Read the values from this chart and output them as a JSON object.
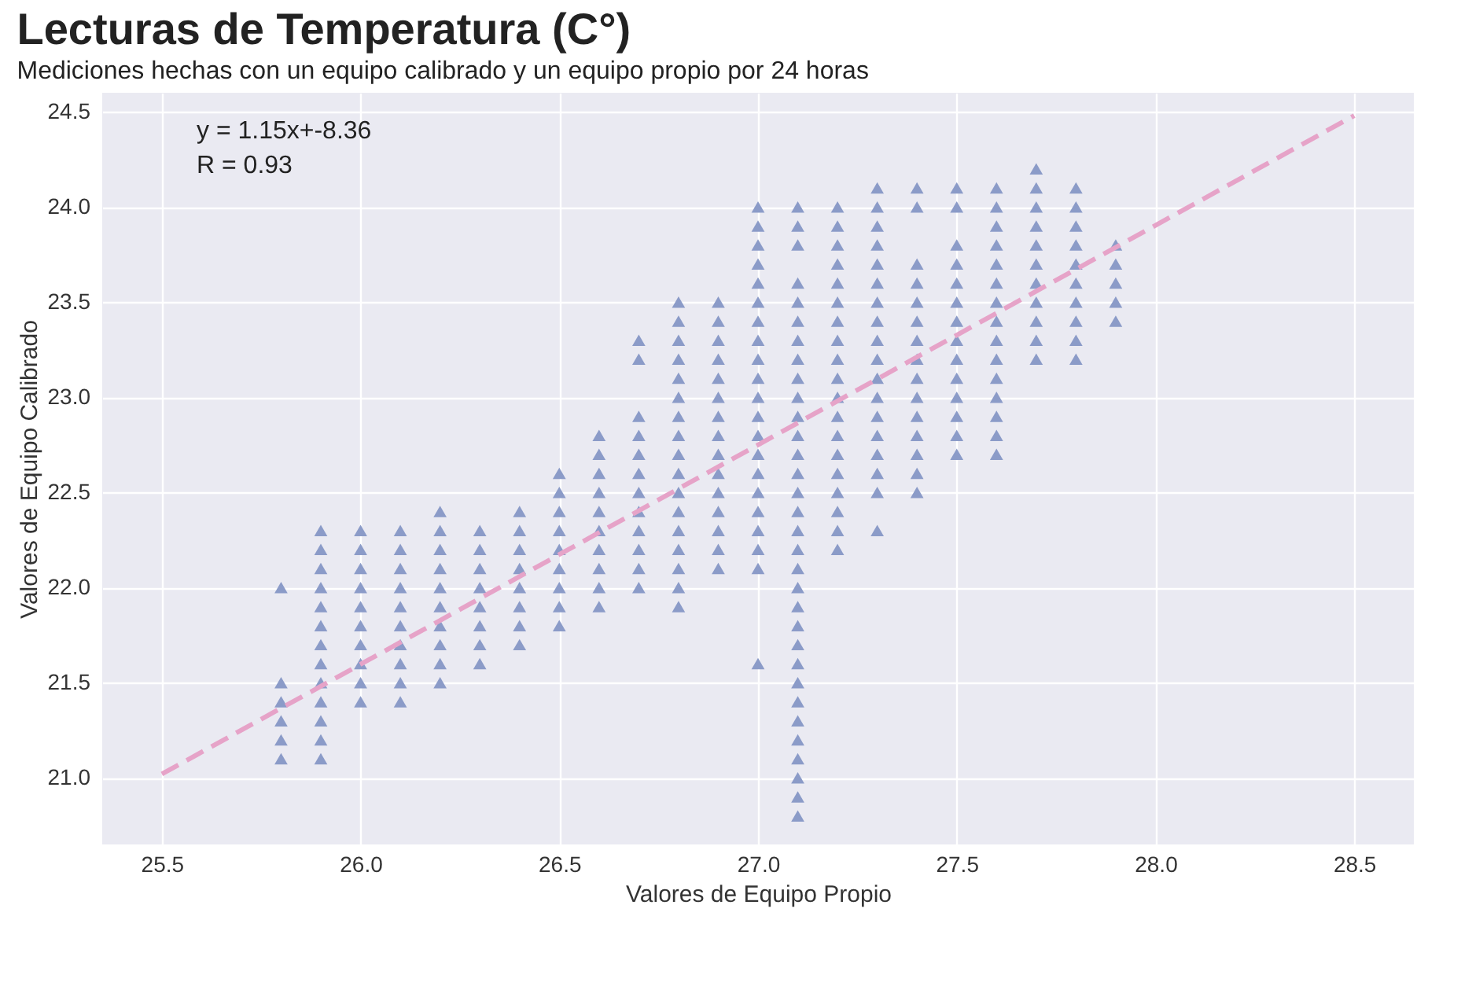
{
  "chart_data": {
    "type": "scatter",
    "title": "Lecturas de Temperatura (C°)",
    "subtitle": "Mediciones hechas con un equipo calibrado y un equipo propio por 24 horas",
    "xlabel": "Valores de Equipo Propio",
    "ylabel": "Valores de Equipo Calibrado",
    "annotations": [
      "y = 1.15x+-8.36",
      "R = 0.93"
    ],
    "xlim": [
      25.35,
      28.65
    ],
    "ylim": [
      20.65,
      24.6
    ],
    "xticks": [
      25.5,
      {
        "value": 26,
        "label": "26.0"
      },
      26.5,
      {
        "value": 27,
        "label": "27.0"
      },
      27.5,
      {
        "value": 28,
        "label": "28.0"
      },
      28.5
    ],
    "yticks": [
      {
        "value": 21,
        "label": "21.0"
      },
      21.5,
      {
        "value": 22,
        "label": "22.0"
      },
      22.5,
      {
        "value": 23,
        "label": "23.0"
      },
      23.5,
      {
        "value": 24,
        "label": "24.0"
      },
      24.5
    ],
    "grid": true,
    "marker": "triangle",
    "series": [
      {
        "color": "#8b9bc8",
        "x": [
          25.8,
          25.8,
          25.8,
          25.8,
          25.8,
          25.8,
          25.9,
          25.9,
          25.9,
          25.9,
          25.9,
          25.9,
          25.9,
          25.9,
          25.9,
          25.9,
          25.9,
          25.9,
          25.9,
          26.0,
          26.0,
          26.0,
          26.0,
          26.0,
          26.0,
          26.0,
          26.0,
          26.0,
          26.0,
          26.1,
          26.1,
          26.1,
          26.1,
          26.1,
          26.1,
          26.1,
          26.1,
          26.1,
          26.1,
          26.2,
          26.2,
          26.2,
          26.2,
          26.2,
          26.2,
          26.2,
          26.2,
          26.2,
          26.2,
          26.3,
          26.3,
          26.3,
          26.3,
          26.3,
          26.3,
          26.3,
          26.3,
          26.4,
          26.4,
          26.4,
          26.4,
          26.4,
          26.4,
          26.4,
          26.4,
          26.5,
          26.5,
          26.5,
          26.5,
          26.5,
          26.5,
          26.5,
          26.5,
          26.5,
          26.6,
          26.6,
          26.6,
          26.6,
          26.6,
          26.6,
          26.6,
          26.6,
          26.6,
          26.6,
          26.7,
          26.7,
          26.7,
          26.7,
          26.7,
          26.7,
          26.7,
          26.7,
          26.7,
          26.7,
          26.7,
          26.7,
          26.8,
          26.8,
          26.8,
          26.8,
          26.8,
          26.8,
          26.8,
          26.8,
          26.8,
          26.8,
          26.8,
          26.8,
          26.8,
          26.8,
          26.8,
          26.8,
          26.8,
          26.9,
          26.9,
          26.9,
          26.9,
          26.9,
          26.9,
          26.9,
          26.9,
          26.9,
          26.9,
          26.9,
          26.9,
          26.9,
          26.9,
          26.9,
          27.0,
          27.0,
          27.0,
          27.0,
          27.0,
          27.0,
          27.0,
          27.0,
          27.0,
          27.0,
          27.0,
          27.0,
          27.0,
          27.0,
          27.0,
          27.0,
          27.0,
          27.0,
          27.0,
          27.0,
          27.0,
          27.1,
          27.1,
          27.1,
          27.1,
          27.1,
          27.1,
          27.1,
          27.1,
          27.1,
          27.1,
          27.1,
          27.1,
          27.1,
          27.1,
          27.1,
          27.1,
          27.1,
          27.1,
          27.1,
          27.1,
          27.1,
          27.1,
          27.1,
          27.1,
          27.1,
          27.1,
          27.1,
          27.1,
          27.1,
          27.1,
          27.1,
          27.1,
          27.2,
          27.2,
          27.2,
          27.2,
          27.2,
          27.2,
          27.2,
          27.2,
          27.2,
          27.2,
          27.2,
          27.2,
          27.2,
          27.2,
          27.2,
          27.2,
          27.2,
          27.2,
          27.2,
          27.3,
          27.3,
          27.3,
          27.3,
          27.3,
          27.3,
          27.3,
          27.3,
          27.3,
          27.3,
          27.3,
          27.3,
          27.3,
          27.3,
          27.3,
          27.3,
          27.3,
          27.3,
          27.4,
          27.4,
          27.4,
          27.4,
          27.4,
          27.4,
          27.4,
          27.4,
          27.4,
          27.4,
          27.4,
          27.4,
          27.4,
          27.4,
          27.4,
          27.5,
          27.5,
          27.5,
          27.5,
          27.5,
          27.5,
          27.5,
          27.5,
          27.5,
          27.5,
          27.5,
          27.5,
          27.5,
          27.5,
          27.6,
          27.6,
          27.6,
          27.6,
          27.6,
          27.6,
          27.6,
          27.6,
          27.6,
          27.6,
          27.6,
          27.6,
          27.6,
          27.6,
          27.6,
          27.7,
          27.7,
          27.7,
          27.7,
          27.7,
          27.7,
          27.7,
          27.7,
          27.7,
          27.7,
          27.7,
          27.8,
          27.8,
          27.8,
          27.8,
          27.8,
          27.8,
          27.8,
          27.8,
          27.8,
          27.8,
          27.9,
          27.9,
          27.9,
          27.9,
          27.9
        ],
        "values": [
          21.1,
          21.2,
          21.3,
          21.4,
          21.5,
          22.0,
          21.1,
          21.2,
          21.3,
          21.4,
          21.5,
          21.6,
          21.7,
          21.8,
          21.9,
          22.0,
          22.1,
          22.2,
          22.3,
          21.4,
          21.5,
          21.6,
          21.7,
          21.8,
          21.9,
          22.0,
          22.1,
          22.2,
          22.3,
          21.4,
          21.5,
          21.6,
          21.7,
          21.8,
          21.9,
          22.0,
          22.1,
          22.2,
          22.3,
          21.5,
          21.6,
          21.7,
          21.8,
          21.9,
          22.0,
          22.1,
          22.2,
          22.3,
          22.4,
          21.6,
          21.7,
          21.8,
          21.9,
          22.0,
          22.1,
          22.2,
          22.3,
          21.7,
          21.8,
          21.9,
          22.0,
          22.1,
          22.2,
          22.3,
          22.4,
          21.8,
          21.9,
          22.0,
          22.1,
          22.2,
          22.3,
          22.4,
          22.5,
          22.6,
          21.9,
          22.0,
          22.1,
          22.2,
          22.3,
          22.4,
          22.5,
          22.6,
          22.7,
          22.8,
          22.0,
          22.1,
          22.2,
          22.3,
          22.4,
          22.5,
          22.6,
          22.7,
          22.8,
          22.9,
          23.2,
          23.3,
          21.9,
          22.0,
          22.1,
          22.2,
          22.3,
          22.4,
          22.5,
          22.6,
          22.7,
          22.8,
          22.9,
          23.0,
          23.1,
          23.2,
          23.3,
          23.4,
          23.5,
          22.1,
          22.2,
          22.3,
          22.4,
          22.5,
          22.6,
          22.7,
          22.8,
          22.9,
          23.0,
          23.1,
          23.2,
          23.3,
          23.4,
          23.5,
          21.6,
          22.1,
          22.2,
          22.3,
          22.4,
          22.5,
          22.6,
          22.7,
          22.8,
          22.9,
          23.0,
          23.1,
          23.2,
          23.3,
          23.4,
          23.5,
          23.6,
          23.7,
          23.8,
          23.9,
          24.0,
          20.8,
          20.9,
          21.0,
          21.1,
          21.2,
          21.3,
          21.4,
          21.5,
          21.6,
          21.7,
          21.8,
          21.9,
          22.0,
          22.1,
          22.2,
          22.3,
          22.4,
          22.5,
          22.6,
          22.7,
          22.8,
          22.9,
          23.0,
          23.1,
          23.2,
          23.3,
          23.4,
          23.5,
          23.6,
          23.8,
          23.9,
          24.0,
          22.2,
          22.3,
          22.4,
          22.5,
          22.6,
          22.7,
          22.8,
          22.9,
          23.0,
          23.1,
          23.2,
          23.3,
          23.4,
          23.5,
          23.6,
          23.7,
          23.8,
          23.9,
          24.0,
          22.3,
          22.5,
          22.6,
          22.7,
          22.8,
          22.9,
          23.0,
          23.1,
          23.2,
          23.3,
          23.4,
          23.5,
          23.6,
          23.7,
          23.8,
          23.9,
          24.0,
          24.1,
          22.5,
          22.6,
          22.7,
          22.8,
          22.9,
          23.0,
          23.1,
          23.2,
          23.3,
          23.4,
          23.5,
          23.6,
          23.7,
          24.0,
          24.1,
          22.7,
          22.8,
          22.9,
          23.0,
          23.1,
          23.2,
          23.3,
          23.4,
          23.5,
          23.6,
          23.7,
          23.8,
          24.0,
          24.1,
          22.7,
          22.8,
          22.9,
          23.0,
          23.1,
          23.2,
          23.3,
          23.4,
          23.5,
          23.6,
          23.7,
          23.8,
          23.9,
          24.0,
          24.1,
          23.2,
          23.3,
          23.4,
          23.5,
          23.6,
          23.7,
          23.8,
          23.9,
          24.0,
          24.1,
          24.2,
          23.2,
          23.3,
          23.4,
          23.5,
          23.6,
          23.7,
          23.8,
          23.9,
          24.0,
          24.1,
          23.4,
          23.5,
          23.6,
          23.7,
          23.8
        ]
      },
      {
        "type": "line",
        "color": "#e6a3c8",
        "line_style": "dashed",
        "marker": "none",
        "x": [
          25.5,
          28.5
        ],
        "values": [
          21.02,
          24.48
        ]
      }
    ]
  }
}
